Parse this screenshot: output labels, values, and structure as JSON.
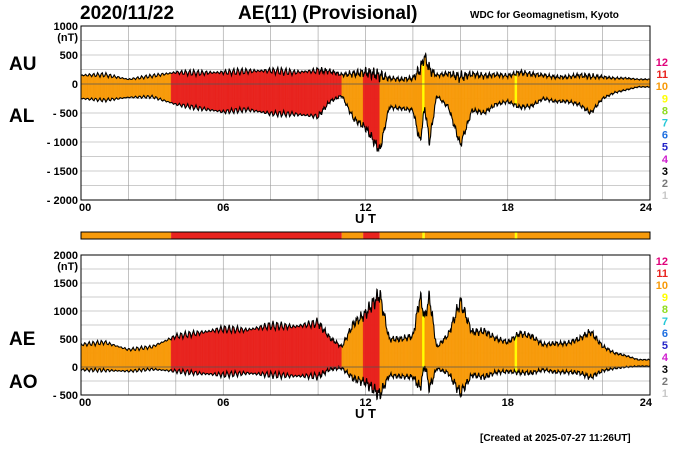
{
  "header": {
    "date": "2020/11/22",
    "title": "AE(11) (Provisional)",
    "source": "WDC for Geomagnetism, Kyoto"
  },
  "footer": "[Created at 2025-07-27 11:26UT]",
  "colors": {
    "c12": "#e0007a",
    "c11": "#e8231e",
    "c10": "#f79a0a",
    "c9": "#ffff00",
    "c8": "#8fdc1e",
    "c7": "#25c8d8",
    "c6": "#1e6ee0",
    "c5": "#2424c8",
    "c4": "#d020d0",
    "c3": "#000000",
    "c2": "#787878",
    "c1": "#c8c8c8",
    "red": "#e8231e",
    "orange": "#f79a0a",
    "yellow": "#ffff44",
    "line": "#000000"
  },
  "legend": [
    "12",
    "11",
    "10",
    "9",
    "8",
    "7",
    "6",
    "5",
    "4",
    "3",
    "2",
    "1"
  ],
  "color_bar": [
    {
      "from": 0,
      "to": 3.8,
      "level": "10"
    },
    {
      "from": 3.8,
      "to": 11.0,
      "level": "11"
    },
    {
      "from": 11.0,
      "to": 11.9,
      "level": "10"
    },
    {
      "from": 11.9,
      "to": 12.6,
      "level": "11"
    },
    {
      "from": 12.6,
      "to": 14.4,
      "level": "10"
    },
    {
      "from": 14.4,
      "to": 14.5,
      "level": "9"
    },
    {
      "from": 14.5,
      "to": 18.3,
      "level": "10"
    },
    {
      "from": 18.3,
      "to": 18.4,
      "level": "9"
    },
    {
      "from": 18.4,
      "to": 24,
      "level": "10"
    }
  ],
  "chart_data": [
    {
      "type": "area",
      "name": "AU/AL",
      "label_upper": "AU",
      "label_lower": "AL",
      "unit": "(nT)",
      "xlabel": "U T",
      "xlim": [
        0,
        24
      ],
      "ylim": [
        -2000,
        1000
      ],
      "yticks": [
        "1000",
        "500",
        "0",
        "- 500",
        "- 1000",
        "- 1500",
        "- 2000"
      ],
      "ytick_values": [
        1000,
        500,
        0,
        -500,
        -1000,
        -1500,
        -2000
      ],
      "xticks": [
        "00",
        "06",
        "12",
        "18",
        "24"
      ],
      "xtick_values": [
        0,
        6,
        12,
        18,
        24
      ],
      "grid": true,
      "x": [
        0,
        1,
        2,
        3,
        4,
        5,
        6,
        7,
        8,
        9,
        10,
        10.5,
        11,
        11.5,
        12,
        12.3,
        12.6,
        13,
        13.5,
        14,
        14.3,
        14.5,
        14.7,
        15,
        15.5,
        16,
        16.5,
        17,
        17.5,
        18,
        18.5,
        19,
        19.5,
        20,
        20.5,
        21,
        21.5,
        22,
        22.5,
        23,
        23.5,
        24
      ],
      "series": [
        {
          "name": "AU",
          "values": [
            150,
            160,
            80,
            140,
            200,
            190,
            200,
            220,
            230,
            200,
            230,
            220,
            160,
            180,
            200,
            180,
            150,
            100,
            80,
            100,
            250,
            480,
            250,
            150,
            180,
            120,
            170,
            140,
            160,
            140,
            200,
            170,
            150,
            120,
            120,
            150,
            130,
            120,
            100,
            100,
            80,
            80
          ]
        },
        {
          "name": "AL",
          "values": [
            -250,
            -280,
            -230,
            -220,
            -350,
            -420,
            -480,
            -440,
            -510,
            -520,
            -560,
            -300,
            -200,
            -600,
            -750,
            -950,
            -1150,
            -400,
            -420,
            -450,
            -1000,
            -400,
            -1000,
            -200,
            -400,
            -1050,
            -450,
            -500,
            -350,
            -300,
            -400,
            -380,
            -250,
            -300,
            -300,
            -350,
            -500,
            -250,
            -150,
            -100,
            -50,
            -50
          ]
        }
      ]
    },
    {
      "type": "area",
      "name": "AE/AO",
      "label_upper": "AE",
      "label_lower": "AO",
      "unit": "(nT)",
      "xlabel": "U T",
      "xlim": [
        0,
        24
      ],
      "ylim": [
        -500,
        2000
      ],
      "yticks": [
        "2000",
        "1500",
        "1000",
        "500",
        "0",
        "- 500"
      ],
      "ytick_values": [
        2000,
        1500,
        1000,
        500,
        0,
        -500
      ],
      "xticks": [
        "00",
        "06",
        "12",
        "18",
        "24"
      ],
      "xtick_values": [
        0,
        6,
        12,
        18,
        24
      ],
      "grid": true,
      "x": [
        0,
        1,
        2,
        3,
        4,
        5,
        6,
        7,
        8,
        9,
        10,
        10.5,
        11,
        11.5,
        12,
        12.3,
        12.6,
        13,
        13.5,
        14,
        14.3,
        14.5,
        14.7,
        15,
        15.5,
        16,
        16.5,
        17,
        17.5,
        18,
        18.5,
        19,
        19.5,
        20,
        20.5,
        21,
        21.5,
        22,
        22.5,
        23,
        23.5,
        24
      ],
      "series": [
        {
          "name": "AE",
          "values": [
            400,
            440,
            310,
            360,
            550,
            610,
            680,
            660,
            740,
            720,
            790,
            520,
            360,
            780,
            950,
            1130,
            1300,
            500,
            500,
            550,
            1250,
            880,
            1250,
            350,
            580,
            1170,
            620,
            640,
            510,
            440,
            600,
            550,
            400,
            420,
            420,
            500,
            630,
            370,
            250,
            200,
            130,
            130
          ]
        },
        {
          "name": "AO",
          "values": [
            -50,
            -60,
            -75,
            -40,
            -75,
            -115,
            -140,
            -110,
            -140,
            -160,
            -165,
            -40,
            -20,
            -210,
            -275,
            -385,
            -500,
            -150,
            -170,
            -175,
            -375,
            40,
            -375,
            -25,
            -110,
            -465,
            -140,
            -180,
            -95,
            -80,
            -100,
            -105,
            -50,
            -90,
            -90,
            -100,
            -185,
            -65,
            -25,
            0,
            15,
            15
          ]
        }
      ]
    }
  ]
}
